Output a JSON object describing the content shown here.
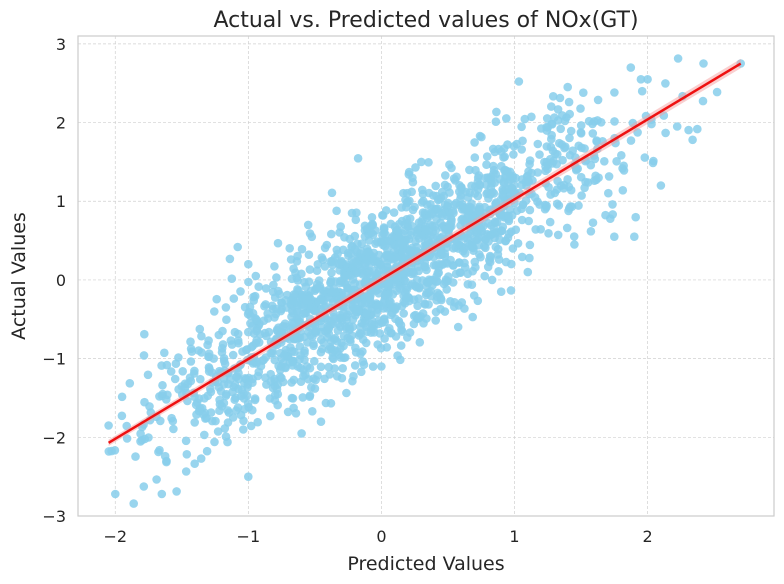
{
  "chart_data": {
    "type": "scatter",
    "title": "Actual vs. Predicted values of NOx(GT)",
    "xlabel": "Predicted Values",
    "ylabel": "Actual Values",
    "xlim": [
      -2.28,
      2.95
    ],
    "ylim": [
      -3.0,
      3.1
    ],
    "xticks": [
      -2,
      -1,
      0,
      1,
      2
    ],
    "yticks": [
      -3,
      -2,
      -1,
      0,
      1,
      2,
      3
    ],
    "xtick_labels": [
      "−2",
      "−1",
      "0",
      "1",
      "2"
    ],
    "ytick_labels": [
      "−3",
      "−2",
      "−1",
      "0",
      "1",
      "2",
      "3"
    ],
    "grid": true,
    "points": {
      "color": "#87ceeb",
      "x_range": [
        -2.05,
        2.7
      ],
      "approx_count": 1800,
      "trend_spread": 0.45,
      "sample": [
        [
          -2.0,
          -2.72
        ],
        [
          -1.65,
          -2.72
        ],
        [
          -1.0,
          -2.5
        ],
        [
          2.42,
          2.75
        ],
        [
          2.7,
          2.75
        ],
        [
          2.0,
          2.55
        ],
        [
          1.95,
          2.55
        ],
        [
          1.4,
          2.45
        ],
        [
          2.1,
          1.2
        ],
        [
          1.9,
          0.55
        ],
        [
          1.75,
          0.55
        ],
        [
          1.45,
          0.45
        ],
        [
          1.1,
          0.1
        ],
        [
          0.9,
          -0.15
        ],
        [
          -0.55,
          0.7
        ],
        [
          -1.0,
          0.2
        ],
        [
          -2.05,
          -1.85
        ],
        [
          -0.6,
          -1.95
        ],
        [
          0.0,
          -1.1
        ],
        [
          0.3,
          1.5
        ]
      ]
    },
    "regression_line": {
      "color": "#ee1111",
      "x": [
        -2.05,
        2.7
      ],
      "y": [
        -2.07,
        2.75
      ]
    }
  }
}
